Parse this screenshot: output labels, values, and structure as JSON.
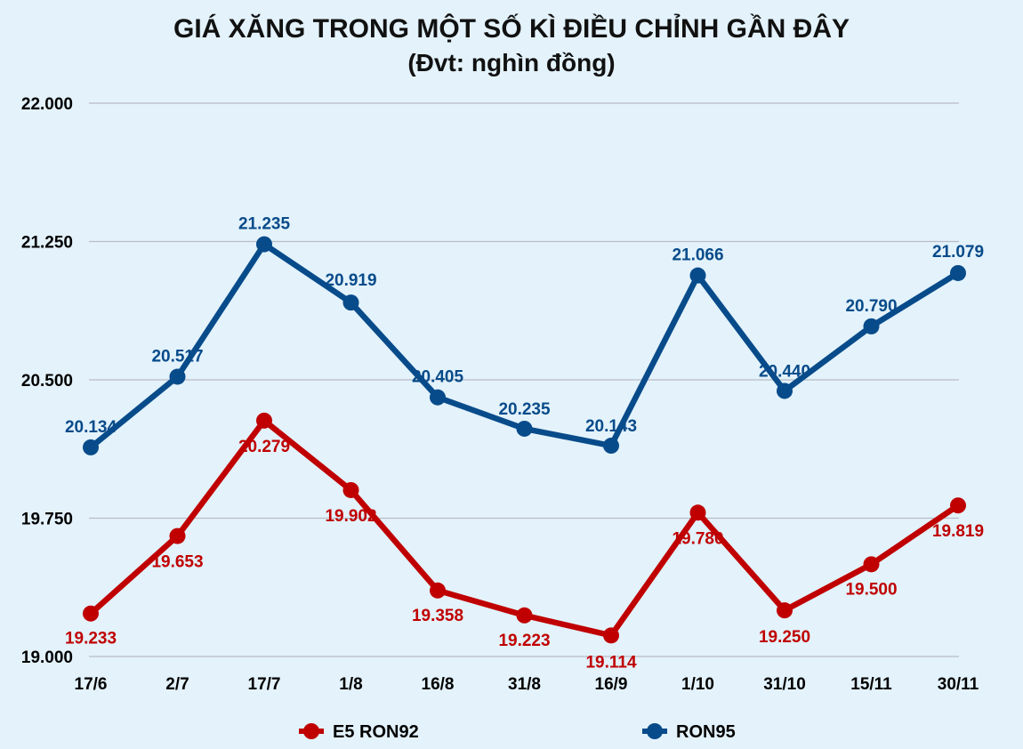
{
  "chart_data": {
    "type": "line",
    "title": "GIÁ XĂNG TRONG MỘT SỐ KÌ ĐIỀU CHỈNH GẦN ĐÂY",
    "subtitle": "(Đvt: nghìn đồng)",
    "categories": [
      "17/6",
      "2/7",
      "17/7",
      "1/8",
      "16/8",
      "31/8",
      "16/9",
      "1/10",
      "31/10",
      "15/11",
      "30/11"
    ],
    "ylim": [
      19.0,
      22.0
    ],
    "yticks": [
      19.0,
      19.75,
      20.5,
      21.25,
      22.0
    ],
    "ytick_labels": [
      "19.000",
      "19.750",
      "20.500",
      "21.250",
      "22.000"
    ],
    "grid": true,
    "legend_position": "bottom",
    "series": [
      {
        "name": "E5 RON92",
        "color": "#c00000",
        "values": [
          19.233,
          19.653,
          20.279,
          19.902,
          19.358,
          19.223,
          19.114,
          19.78,
          19.25,
          19.5,
          19.819
        ],
        "labels": [
          "19.233",
          "19.653",
          "20.279",
          "19.902",
          "19.358",
          "19.223",
          "19.114",
          "19.780",
          "19.250",
          "19.500",
          "19.819"
        ]
      },
      {
        "name": "RON95",
        "color": "#084b8a",
        "values": [
          20.134,
          20.517,
          21.235,
          20.919,
          20.405,
          20.235,
          20.143,
          21.066,
          20.44,
          20.79,
          21.079
        ],
        "labels": [
          "20.134",
          "20.517",
          "21.235",
          "20.919",
          "20.405",
          "20.235",
          "20.143",
          "21.066",
          "20.440",
          "20.790",
          "21.079"
        ]
      }
    ]
  }
}
